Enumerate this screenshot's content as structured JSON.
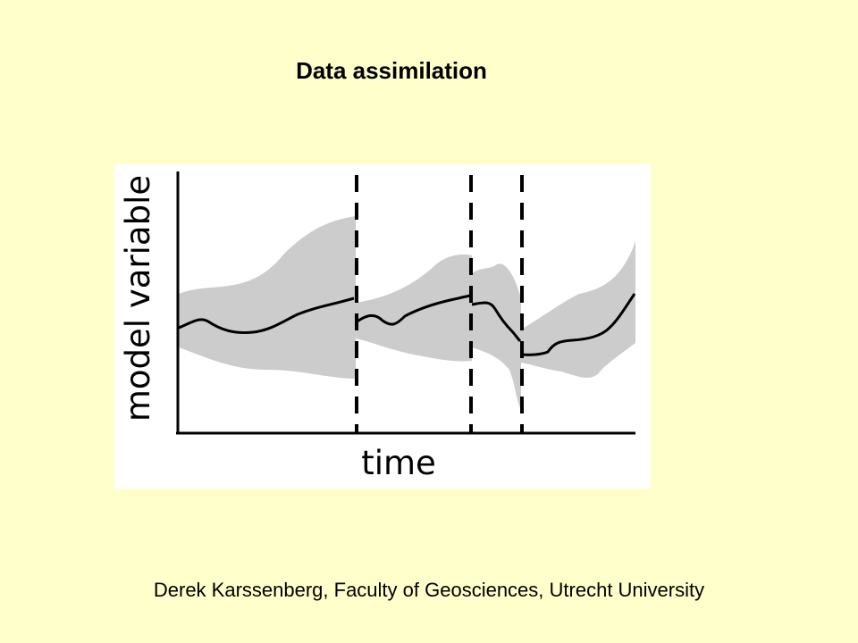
{
  "slide": {
    "title": "Data assimilation",
    "credit": "Derek Karssenberg, Faculty of Geosciences, Utrecht University",
    "background_color": "#ffffcc"
  },
  "diagram": {
    "y_axis_label": "model variable",
    "x_axis_label": "time",
    "band_color": "#cccccc",
    "line_color": "#000000",
    "axis_color": "#000000"
  }
}
